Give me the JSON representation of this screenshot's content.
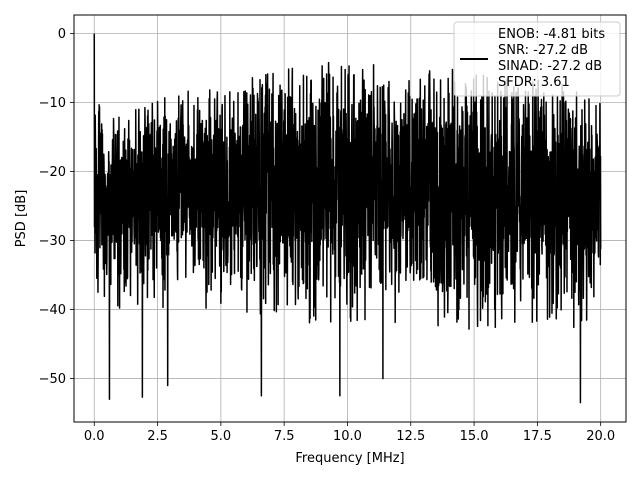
{
  "chart_data": {
    "type": "line",
    "xlabel": "Frequency [MHz]",
    "ylabel": "PSD [dB]",
    "xlim": [
      -0.8,
      21.0
    ],
    "ylim": [
      -56.3,
      2.7
    ],
    "xticks": [
      0.0,
      2.5,
      5.0,
      7.5,
      10.0,
      12.5,
      15.0,
      17.5,
      20.0
    ],
    "xtick_labels": [
      "0.0",
      "2.5",
      "5.0",
      "7.5",
      "10.0",
      "12.5",
      "15.0",
      "17.5",
      "20.0"
    ],
    "yticks": [
      0,
      -10,
      -20,
      -30,
      -40,
      -50
    ],
    "ytick_labels": [
      "0",
      "−10",
      "−20",
      "−30",
      "−40",
      "−50"
    ],
    "grid": true,
    "legend_position": "top-right",
    "series": [
      {
        "color": "#000000",
        "x_range": [
          0.0,
          20.0
        ],
        "peak": [
          0.0,
          0.0
        ],
        "envelope": {
          "x": [
            0.0,
            0.5,
            1.0,
            2.5,
            5.0,
            7.5,
            10.0,
            12.5,
            15.0,
            17.5,
            20.0
          ],
          "upper": [
            -8.5,
            -14.5,
            -12.5,
            -11.0,
            -8.0,
            -6.5,
            -5.0,
            -6.0,
            -7.0,
            -8.0,
            -9.5
          ],
          "lower": [
            -34.0,
            -35.0,
            -35.0,
            -35.0,
            -35.0,
            -37.0,
            -37.0,
            -37.0,
            -38.0,
            -38.0,
            -38.0
          ]
        },
        "notable_dips": [
          {
            "x": 0.6,
            "y": -53.0
          },
          {
            "x": 1.9,
            "y": -52.7
          },
          {
            "x": 2.9,
            "y": -51.0
          },
          {
            "x": 6.6,
            "y": -52.5
          },
          {
            "x": 9.7,
            "y": -52.5
          },
          {
            "x": 11.4,
            "y": -50.0
          },
          {
            "x": 19.2,
            "y": -53.5
          }
        ]
      }
    ],
    "legend_lines": [
      "ENOB: -4.81 bits",
      "SNR: -27.2 dB",
      "SINAD: -27.2 dB",
      "SFDR: 3.61"
    ]
  }
}
